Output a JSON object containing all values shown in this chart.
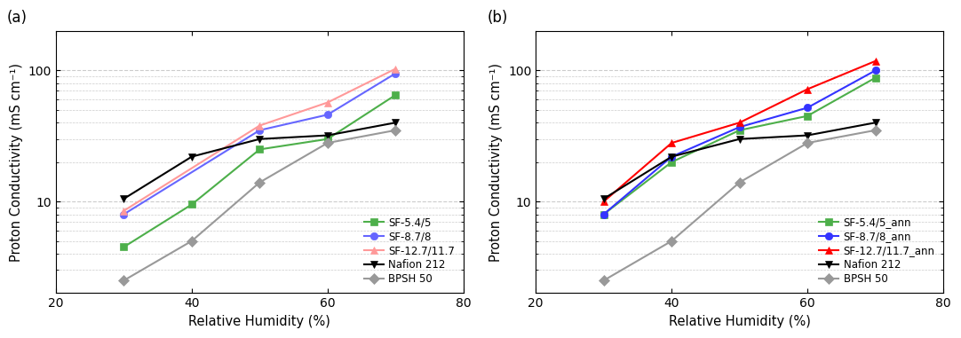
{
  "panel_a": {
    "label": "(a)",
    "series": [
      {
        "name": "SF-5.4/5",
        "color": "#4daf4a",
        "marker": "s",
        "x": [
          30,
          40,
          50,
          60,
          70
        ],
        "y": [
          4.5,
          9.5,
          25,
          30,
          65
        ]
      },
      {
        "name": "SF-8.7/8",
        "color": "#6666ff",
        "marker": "o",
        "x": [
          30,
          50,
          60,
          70
        ],
        "y": [
          8,
          35,
          46,
          95
        ]
      },
      {
        "name": "SF-12.7/11.7",
        "color": "#ff9999",
        "marker": "^",
        "x": [
          30,
          50,
          60,
          70
        ],
        "y": [
          8.5,
          38,
          57,
          103
        ]
      },
      {
        "name": "Nafion 212",
        "color": "#000000",
        "marker": "v",
        "x": [
          30,
          40,
          50,
          60,
          70
        ],
        "y": [
          10.5,
          22,
          30,
          32,
          40
        ]
      },
      {
        "name": "BPSH 50",
        "color": "#999999",
        "marker": "D",
        "x": [
          30,
          40,
          50,
          60,
          70
        ],
        "y": [
          2.5,
          5.0,
          14,
          28,
          35
        ]
      }
    ]
  },
  "panel_b": {
    "label": "(b)",
    "series": [
      {
        "name": "SF-5.4/5_ann",
        "color": "#4daf4a",
        "marker": "s",
        "x": [
          30,
          40,
          50,
          60,
          70
        ],
        "y": [
          8,
          20,
          35,
          45,
          88
        ]
      },
      {
        "name": "SF-8.7/8_ann",
        "color": "#3333ff",
        "marker": "o",
        "x": [
          30,
          40,
          50,
          60,
          70
        ],
        "y": [
          8,
          22,
          37,
          52,
          100
        ]
      },
      {
        "name": "SF-12.7/11.7_ann",
        "color": "#ff0000",
        "marker": "^",
        "x": [
          30,
          40,
          50,
          60,
          70
        ],
        "y": [
          10,
          28,
          40,
          72,
          118
        ]
      },
      {
        "name": "Nafion 212",
        "color": "#000000",
        "marker": "v",
        "x": [
          30,
          40,
          50,
          60,
          70
        ],
        "y": [
          10.5,
          22,
          30,
          32,
          40
        ]
      },
      {
        "name": "BPSH 50",
        "color": "#999999",
        "marker": "D",
        "x": [
          30,
          40,
          50,
          60,
          70
        ],
        "y": [
          2.5,
          5.0,
          14,
          28,
          35
        ]
      }
    ]
  },
  "xlabel": "Relative Humidity (%)",
  "ylabel": "Proton Conductivity (mS cm⁻¹)",
  "xlim": [
    20,
    80
  ],
  "ylim": [
    2.0,
    200
  ],
  "xticks": [
    20,
    40,
    60,
    80
  ],
  "ytick_labels": [
    "10",
    "100"
  ],
  "ytick_values": [
    10,
    100
  ],
  "minor_yticks": [
    2,
    3,
    4,
    5,
    6,
    7,
    8,
    9,
    20,
    30,
    40,
    50,
    60,
    70,
    80,
    90,
    200
  ],
  "legend_fontsize": 8.5,
  "axis_fontsize": 10.5,
  "tick_fontsize": 10,
  "label_fontsize": 12,
  "grid_color": "#cccccc",
  "line_width": 1.5,
  "marker_size": 6
}
